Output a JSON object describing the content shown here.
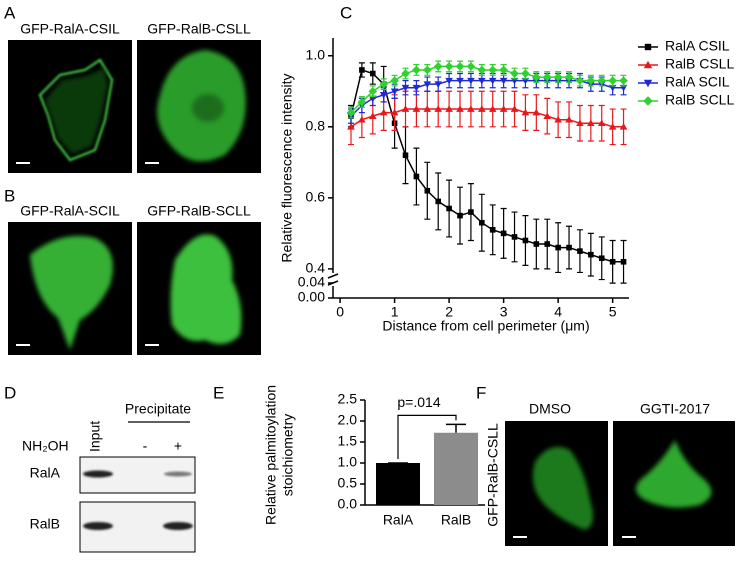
{
  "figure": {
    "panel_labels": [
      "A",
      "B",
      "C",
      "D",
      "E",
      "F"
    ]
  },
  "panel_a": {
    "captions": [
      "GFP-RalA-CSIL",
      "GFP-RalB-CSLL"
    ]
  },
  "panel_b": {
    "captions": [
      "GFP-RalA-SCIL",
      "GFP-RalB-SCLL"
    ]
  },
  "panel_d": {
    "lane_input": "Input",
    "precipitate": "Precipitate",
    "treatment": "NH₂OH",
    "treatment_levels": [
      "-",
      "+"
    ],
    "rows": [
      "RalA",
      "RalB"
    ]
  },
  "panel_f": {
    "side_label": "GFP-RalB-CSLL",
    "captions": [
      "DMSO",
      "GGTI-2017"
    ]
  },
  "chart_data": [
    {
      "type": "line",
      "ylabel": "Relative fluorescence intensity",
      "xlabel": "Distance from cell perimeter (μm)",
      "x": [
        0.2,
        0.4,
        0.6,
        0.8,
        1.0,
        1.2,
        1.4,
        1.6,
        1.8,
        2.0,
        2.2,
        2.4,
        2.6,
        2.8,
        3.0,
        3.2,
        3.4,
        3.6,
        3.8,
        4.0,
        4.2,
        4.4,
        4.6,
        4.8,
        5.0,
        5.2
      ],
      "xlim": [
        -0.13,
        5.3
      ],
      "xticks": [
        0,
        1,
        2,
        3,
        4,
        5
      ],
      "ylim": [
        0,
        1.05
      ],
      "ybreak": [
        0.04,
        0.38
      ],
      "yticks": [
        {
          "value": 0,
          "label": "0.00"
        },
        0.04,
        0.4,
        0.6,
        0.8,
        {
          "value": 1,
          "label": "1.0"
        }
      ],
      "legend": "upper right",
      "series": [
        {
          "name": "RalA CSIL",
          "color": "#000000",
          "marker": "square",
          "values": [
            0.83,
            0.96,
            0.95,
            0.92,
            0.81,
            0.72,
            0.66,
            0.62,
            0.59,
            0.57,
            0.55,
            0.56,
            0.53,
            0.51,
            0.5,
            0.49,
            0.48,
            0.47,
            0.47,
            0.46,
            0.46,
            0.45,
            0.44,
            0.43,
            0.42,
            0.42
          ],
          "errors": [
            0.03,
            0.02,
            0.03,
            0.05,
            0.07,
            0.08,
            0.08,
            0.08,
            0.08,
            0.08,
            0.08,
            0.08,
            0.08,
            0.07,
            0.07,
            0.07,
            0.07,
            0.07,
            0.07,
            0.07,
            0.06,
            0.06,
            0.06,
            0.06,
            0.06,
            0.06
          ]
        },
        {
          "name": "RalB CSLL",
          "color": "#e8191c",
          "marker": "triangle-up",
          "values": [
            0.8,
            0.82,
            0.83,
            0.84,
            0.84,
            0.85,
            0.85,
            0.85,
            0.85,
            0.85,
            0.85,
            0.85,
            0.85,
            0.85,
            0.85,
            0.85,
            0.84,
            0.84,
            0.83,
            0.82,
            0.82,
            0.81,
            0.81,
            0.81,
            0.8,
            0.8
          ],
          "errors": [
            0.05,
            0.05,
            0.05,
            0.05,
            0.05,
            0.05,
            0.05,
            0.05,
            0.05,
            0.05,
            0.05,
            0.05,
            0.05,
            0.05,
            0.05,
            0.05,
            0.05,
            0.05,
            0.05,
            0.05,
            0.05,
            0.05,
            0.05,
            0.05,
            0.05,
            0.05
          ]
        },
        {
          "name": "RalA SCIL",
          "color": "#1f2bd1",
          "marker": "triangle-down",
          "values": [
            0.83,
            0.86,
            0.88,
            0.89,
            0.9,
            0.91,
            0.91,
            0.92,
            0.92,
            0.93,
            0.93,
            0.93,
            0.93,
            0.93,
            0.93,
            0.93,
            0.93,
            0.93,
            0.93,
            0.93,
            0.93,
            0.93,
            0.92,
            0.92,
            0.91,
            0.91
          ],
          "errors": [
            0.02,
            0.02,
            0.02,
            0.02,
            0.02,
            0.02,
            0.02,
            0.02,
            0.02,
            0.02,
            0.02,
            0.02,
            0.02,
            0.02,
            0.02,
            0.02,
            0.02,
            0.02,
            0.02,
            0.02,
            0.02,
            0.02,
            0.02,
            0.02,
            0.02,
            0.02
          ]
        },
        {
          "name": "RalB SCLL",
          "color": "#2fd12f",
          "marker": "diamond",
          "values": [
            0.84,
            0.87,
            0.9,
            0.92,
            0.93,
            0.95,
            0.96,
            0.96,
            0.97,
            0.97,
            0.97,
            0.97,
            0.96,
            0.96,
            0.96,
            0.95,
            0.95,
            0.94,
            0.94,
            0.94,
            0.94,
            0.93,
            0.93,
            0.93,
            0.93,
            0.93
          ],
          "errors": [
            0.015,
            0.015,
            0.015,
            0.015,
            0.015,
            0.015,
            0.015,
            0.015,
            0.015,
            0.015,
            0.015,
            0.015,
            0.015,
            0.015,
            0.015,
            0.015,
            0.015,
            0.015,
            0.015,
            0.015,
            0.015,
            0.015,
            0.015,
            0.015,
            0.015,
            0.015
          ]
        }
      ]
    },
    {
      "type": "bar",
      "ylabel": [
        "Relative palmitoylation",
        "stoichiometry"
      ],
      "categories": [
        "RalA",
        "RalB"
      ],
      "values": [
        1,
        1.72
      ],
      "errors": [
        0,
        0.2
      ],
      "colors": [
        "#000000",
        "#8c8c8c"
      ],
      "ylim": [
        0,
        2.5
      ],
      "yticks": [
        {
          "value": 0,
          "label": "0.0"
        },
        0.5,
        {
          "value": 1,
          "label": "1.0"
        },
        1.5,
        {
          "value": 2,
          "label": "2.0"
        },
        2.5
      ],
      "annotation": "p=.014"
    }
  ]
}
